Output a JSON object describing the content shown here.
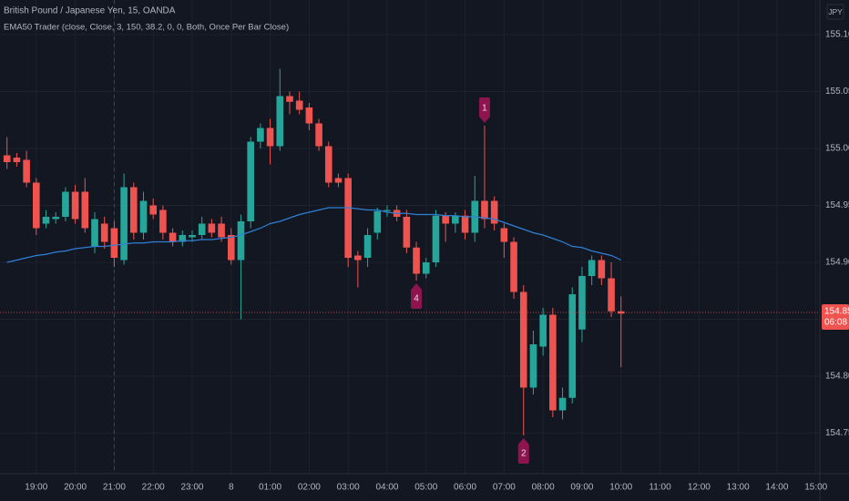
{
  "chart_data": {
    "type": "candlestick",
    "title": "British Pound / Japanese Yen, 15, OANDA",
    "indicator": "EMA50 Trader (close, Close, 3, 150, 38.2, 0, 0, Both, Once Per Bar Close)",
    "currency": "JPY",
    "up_color": "#26a69a",
    "down_color": "#ef5350",
    "x": [
      0.25,
      0.5,
      0.75,
      1,
      1.25,
      1.5,
      1.75,
      2,
      2.25,
      2.5,
      2.75,
      3,
      3.25,
      3.5,
      3.75,
      4,
      4.25,
      4.5,
      4.75,
      5,
      5.25,
      5.5,
      5.75,
      6,
      6.25,
      6.5,
      6.75,
      7,
      7.25,
      7.5,
      7.75,
      8,
      8.25,
      8.5,
      8.75,
      9,
      9.25,
      9.5,
      9.75,
      10,
      10.25,
      10.5,
      10.75,
      11,
      11.25,
      11.5,
      11.75,
      12,
      12.25,
      12.5,
      12.75,
      13,
      13.25,
      13.5,
      13.75,
      14,
      14.25,
      14.5,
      14.75,
      15,
      15.25,
      15.5,
      15.75,
      16
    ],
    "open": [
      154.994,
      154.992,
      154.99,
      154.97,
      154.934,
      154.938,
      154.94,
      154.962,
      154.962,
      154.914,
      154.934,
      154.93,
      154.902,
      154.966,
      154.926,
      154.95,
      154.946,
      154.926,
      154.918,
      154.922,
      154.924,
      154.934,
      154.934,
      154.924,
      154.902,
      154.936,
      155.006,
      155.018,
      155.002,
      155.046,
      155.042,
      155.036,
      155.022,
      155.002,
      154.974,
      154.974,
      154.906,
      154.904,
      154.926,
      154.945,
      154.946,
      154.94,
      154.913,
      154.89,
      154.9,
      154.941,
      154.934,
      154.941,
      154.926,
      154.954,
      154.954,
      154.93,
      154.918,
      154.874,
      154.79,
      154.826,
      154.854,
      154.77,
      154.781,
      154.841,
      154.888,
      154.902,
      154.886,
      154.857
    ],
    "high": [
      155.01,
      154.996,
      154.998,
      154.974,
      154.946,
      154.944,
      154.966,
      154.968,
      154.974,
      154.944,
      154.94,
      154.936,
      154.978,
      154.97,
      154.962,
      154.956,
      154.95,
      154.93,
      154.928,
      154.928,
      154.94,
      154.938,
      154.94,
      154.93,
      154.942,
      155.01,
      155.022,
      155.026,
      155.07,
      155.05,
      155.05,
      155.04,
      155.026,
      155.006,
      154.978,
      154.978,
      154.91,
      154.93,
      154.948,
      154.95,
      154.95,
      154.946,
      154.918,
      154.904,
      154.946,
      154.944,
      154.944,
      154.946,
      154.976,
      155.02,
      154.958,
      154.934,
      154.922,
      154.88,
      154.84,
      154.86,
      154.86,
      154.79,
      154.878,
      154.896,
      154.906,
      154.906,
      154.9,
      154.87
    ],
    "low": [
      154.982,
      154.984,
      154.966,
      154.924,
      154.93,
      154.934,
      154.936,
      154.934,
      154.926,
      154.908,
      154.912,
      154.896,
      154.898,
      154.92,
      154.92,
      154.938,
      154.92,
      154.914,
      154.914,
      154.918,
      154.92,
      154.922,
      154.918,
      154.898,
      154.85,
      154.93,
      155.0,
      154.986,
      154.998,
      155.03,
      155.03,
      155.016,
      154.998,
      154.966,
      154.966,
      154.896,
      154.878,
      154.896,
      154.92,
      154.94,
      154.936,
      154.908,
      154.884,
      154.886,
      154.896,
      154.918,
      154.926,
      154.92,
      154.918,
      154.93,
      154.928,
      154.904,
      154.868,
      154.748,
      154.784,
      154.818,
      154.764,
      154.762,
      154.776,
      154.83,
      154.88,
      154.88,
      154.852,
      154.808
    ],
    "close": [
      154.988,
      154.988,
      154.97,
      154.93,
      154.94,
      154.94,
      154.962,
      154.938,
      154.93,
      154.938,
      154.918,
      154.904,
      154.966,
      154.926,
      154.954,
      154.942,
      154.926,
      154.918,
      154.924,
      154.924,
      154.934,
      154.926,
      154.922,
      154.902,
      154.936,
      155.006,
      155.018,
      155.002,
      155.046,
      155.041,
      155.034,
      155.022,
      155.002,
      154.97,
      154.97,
      154.904,
      154.902,
      154.924,
      154.945,
      154.946,
      154.94,
      154.913,
      154.89,
      154.9,
      154.941,
      154.934,
      154.941,
      154.926,
      154.954,
      154.938,
      154.934,
      154.918,
      154.874,
      154.79,
      154.828,
      154.854,
      154.77,
      154.781,
      154.872,
      154.888,
      154.902,
      154.886,
      154.857,
      154.855
    ],
    "ema": {
      "color": "#2f7fd6",
      "values": [
        154.9,
        154.902,
        154.904,
        154.906,
        154.907,
        154.909,
        154.91,
        154.912,
        154.913,
        154.914,
        154.914,
        154.915,
        154.916,
        154.917,
        154.917,
        154.918,
        154.918,
        154.918,
        154.919,
        154.919,
        154.92,
        154.92,
        154.921,
        154.922,
        154.924,
        154.927,
        154.93,
        154.934,
        154.936,
        154.939,
        154.942,
        154.944,
        154.946,
        154.948,
        154.948,
        154.948,
        154.947,
        154.946,
        154.946,
        154.944,
        154.943,
        154.943,
        154.942,
        154.942,
        154.942,
        154.941,
        154.941,
        154.94,
        154.94,
        154.939,
        154.938,
        154.935,
        154.932,
        154.929,
        154.926,
        154.924,
        154.921,
        154.918,
        154.914,
        154.913,
        154.91,
        154.908,
        154.906,
        154.902
      ]
    },
    "markers": [
      {
        "x": 12.5,
        "label": "1",
        "position": "above"
      },
      {
        "x": 10.75,
        "label": "4",
        "position": "below"
      },
      {
        "x": 13.5,
        "label": "2",
        "position": "below"
      }
    ],
    "marker_color": "#8e1450",
    "session_break": 3,
    "last_price": 154.856,
    "countdown": "06:08",
    "xlim": [
      0.07,
      21.1
    ],
    "ylim": [
      154.7144,
      155.1304
    ],
    "xticks": [
      {
        "value": 1,
        "label": "19:00"
      },
      {
        "value": 2,
        "label": "20:00"
      },
      {
        "value": 3,
        "label": "21:00"
      },
      {
        "value": 4,
        "label": "22:00"
      },
      {
        "value": 5,
        "label": "23:00"
      },
      {
        "value": 6,
        "label": "8"
      },
      {
        "value": 7,
        "label": "01:00"
      },
      {
        "value": 8,
        "label": "02:00"
      },
      {
        "value": 9,
        "label": "03:00"
      },
      {
        "value": 10,
        "label": "04:00"
      },
      {
        "value": 11,
        "label": "05:00"
      },
      {
        "value": 12,
        "label": "06:00"
      },
      {
        "value": 13,
        "label": "07:00"
      },
      {
        "value": 14,
        "label": "08:00"
      },
      {
        "value": 15,
        "label": "09:00"
      },
      {
        "value": 16,
        "label": "10:00"
      },
      {
        "value": 17,
        "label": "11:00"
      },
      {
        "value": 18,
        "label": "12:00"
      },
      {
        "value": 19,
        "label": "13:00"
      },
      {
        "value": 20,
        "label": "14:00"
      },
      {
        "value": 21,
        "label": "15:00"
      }
    ],
    "yticks": [
      {
        "value": 154.75,
        "label": "154.750"
      },
      {
        "value": 154.8,
        "label": "154.800"
      },
      {
        "value": 154.85,
        "label": "154.850"
      },
      {
        "value": 154.9,
        "label": "154.900"
      },
      {
        "value": 154.95,
        "label": "154.950"
      },
      {
        "value": 155,
        "label": "155.000"
      },
      {
        "value": 155.05,
        "label": "155.050"
      },
      {
        "value": 155.1,
        "label": "155.100"
      }
    ],
    "grid": true
  }
}
